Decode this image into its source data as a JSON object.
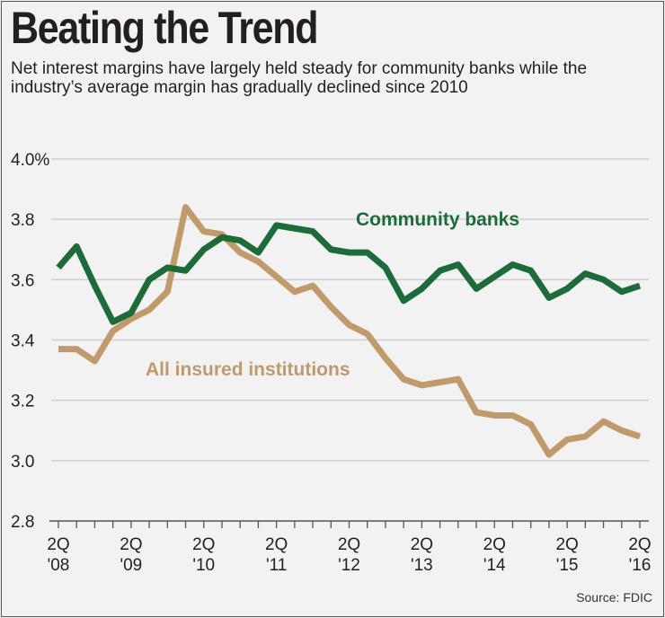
{
  "title": "Beating the Trend",
  "subtitle": "Net interest margins have largely held steady for community banks while the industry’s average margin has gradually declined since 2010",
  "source": "Source: FDIC",
  "chart_data": {
    "type": "line",
    "title": "Beating the Trend",
    "xlabel": "",
    "ylabel": "",
    "ylim": [
      2.8,
      4.0
    ],
    "yticks": [
      "4.0%",
      "3.8",
      "3.6",
      "3.4",
      "3.2",
      "3.0",
      "2.8"
    ],
    "ytick_values": [
      4.0,
      3.8,
      3.6,
      3.4,
      3.2,
      3.0,
      2.8
    ],
    "grid": true,
    "xtick_labels": [
      [
        "2Q",
        "'08"
      ],
      [
        "2Q",
        "'09"
      ],
      [
        "2Q",
        "'10"
      ],
      [
        "2Q",
        "'11"
      ],
      [
        "2Q",
        "'12"
      ],
      [
        "2Q",
        "'13"
      ],
      [
        "2Q",
        "'14"
      ],
      [
        "2Q",
        "'15"
      ],
      [
        "2Q",
        "'16"
      ]
    ],
    "quarters": 33,
    "series": [
      {
        "name": "Community banks",
        "color": "#1e6b3a",
        "values": [
          3.64,
          3.71,
          3.58,
          3.46,
          3.49,
          3.6,
          3.64,
          3.63,
          3.7,
          3.74,
          3.73,
          3.69,
          3.78,
          3.77,
          3.76,
          3.7,
          3.69,
          3.69,
          3.64,
          3.53,
          3.57,
          3.63,
          3.65,
          3.57,
          3.61,
          3.65,
          3.63,
          3.54,
          3.57,
          3.62,
          3.6,
          3.56,
          3.58
        ]
      },
      {
        "name": "All insured institutions",
        "color": "#c19a6b",
        "values": [
          3.37,
          3.37,
          3.33,
          3.43,
          3.47,
          3.5,
          3.56,
          3.84,
          3.76,
          3.75,
          3.69,
          3.66,
          3.61,
          3.56,
          3.58,
          3.51,
          3.45,
          3.42,
          3.34,
          3.27,
          3.25,
          3.26,
          3.27,
          3.16,
          3.15,
          3.15,
          3.12,
          3.02,
          3.07,
          3.08,
          3.13,
          3.1,
          3.08
        ]
      }
    ]
  }
}
